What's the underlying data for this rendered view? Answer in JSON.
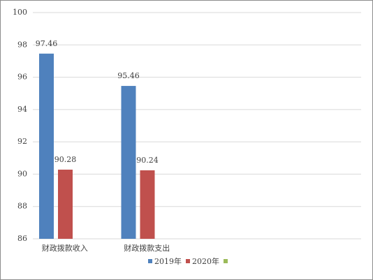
{
  "chart_data": {
    "type": "bar",
    "categories": [
      "财政拨款收入",
      "财政拨款支出",
      null,
      null
    ],
    "series": [
      {
        "name": "2019年",
        "color": "#4f81bd",
        "values": [
          97.46,
          95.46,
          null,
          null
        ]
      },
      {
        "name": "2020年",
        "color": "#c0504d",
        "values": [
          90.28,
          90.24,
          null,
          null
        ]
      },
      {
        "name": null,
        "color": "#9bbb59",
        "values": [
          null,
          null,
          null,
          null
        ]
      }
    ],
    "ylim": [
      86,
      100
    ],
    "yticks": [
      86,
      88,
      90,
      92,
      94,
      96,
      98,
      100
    ],
    "grid": true,
    "legend": "bottom"
  }
}
